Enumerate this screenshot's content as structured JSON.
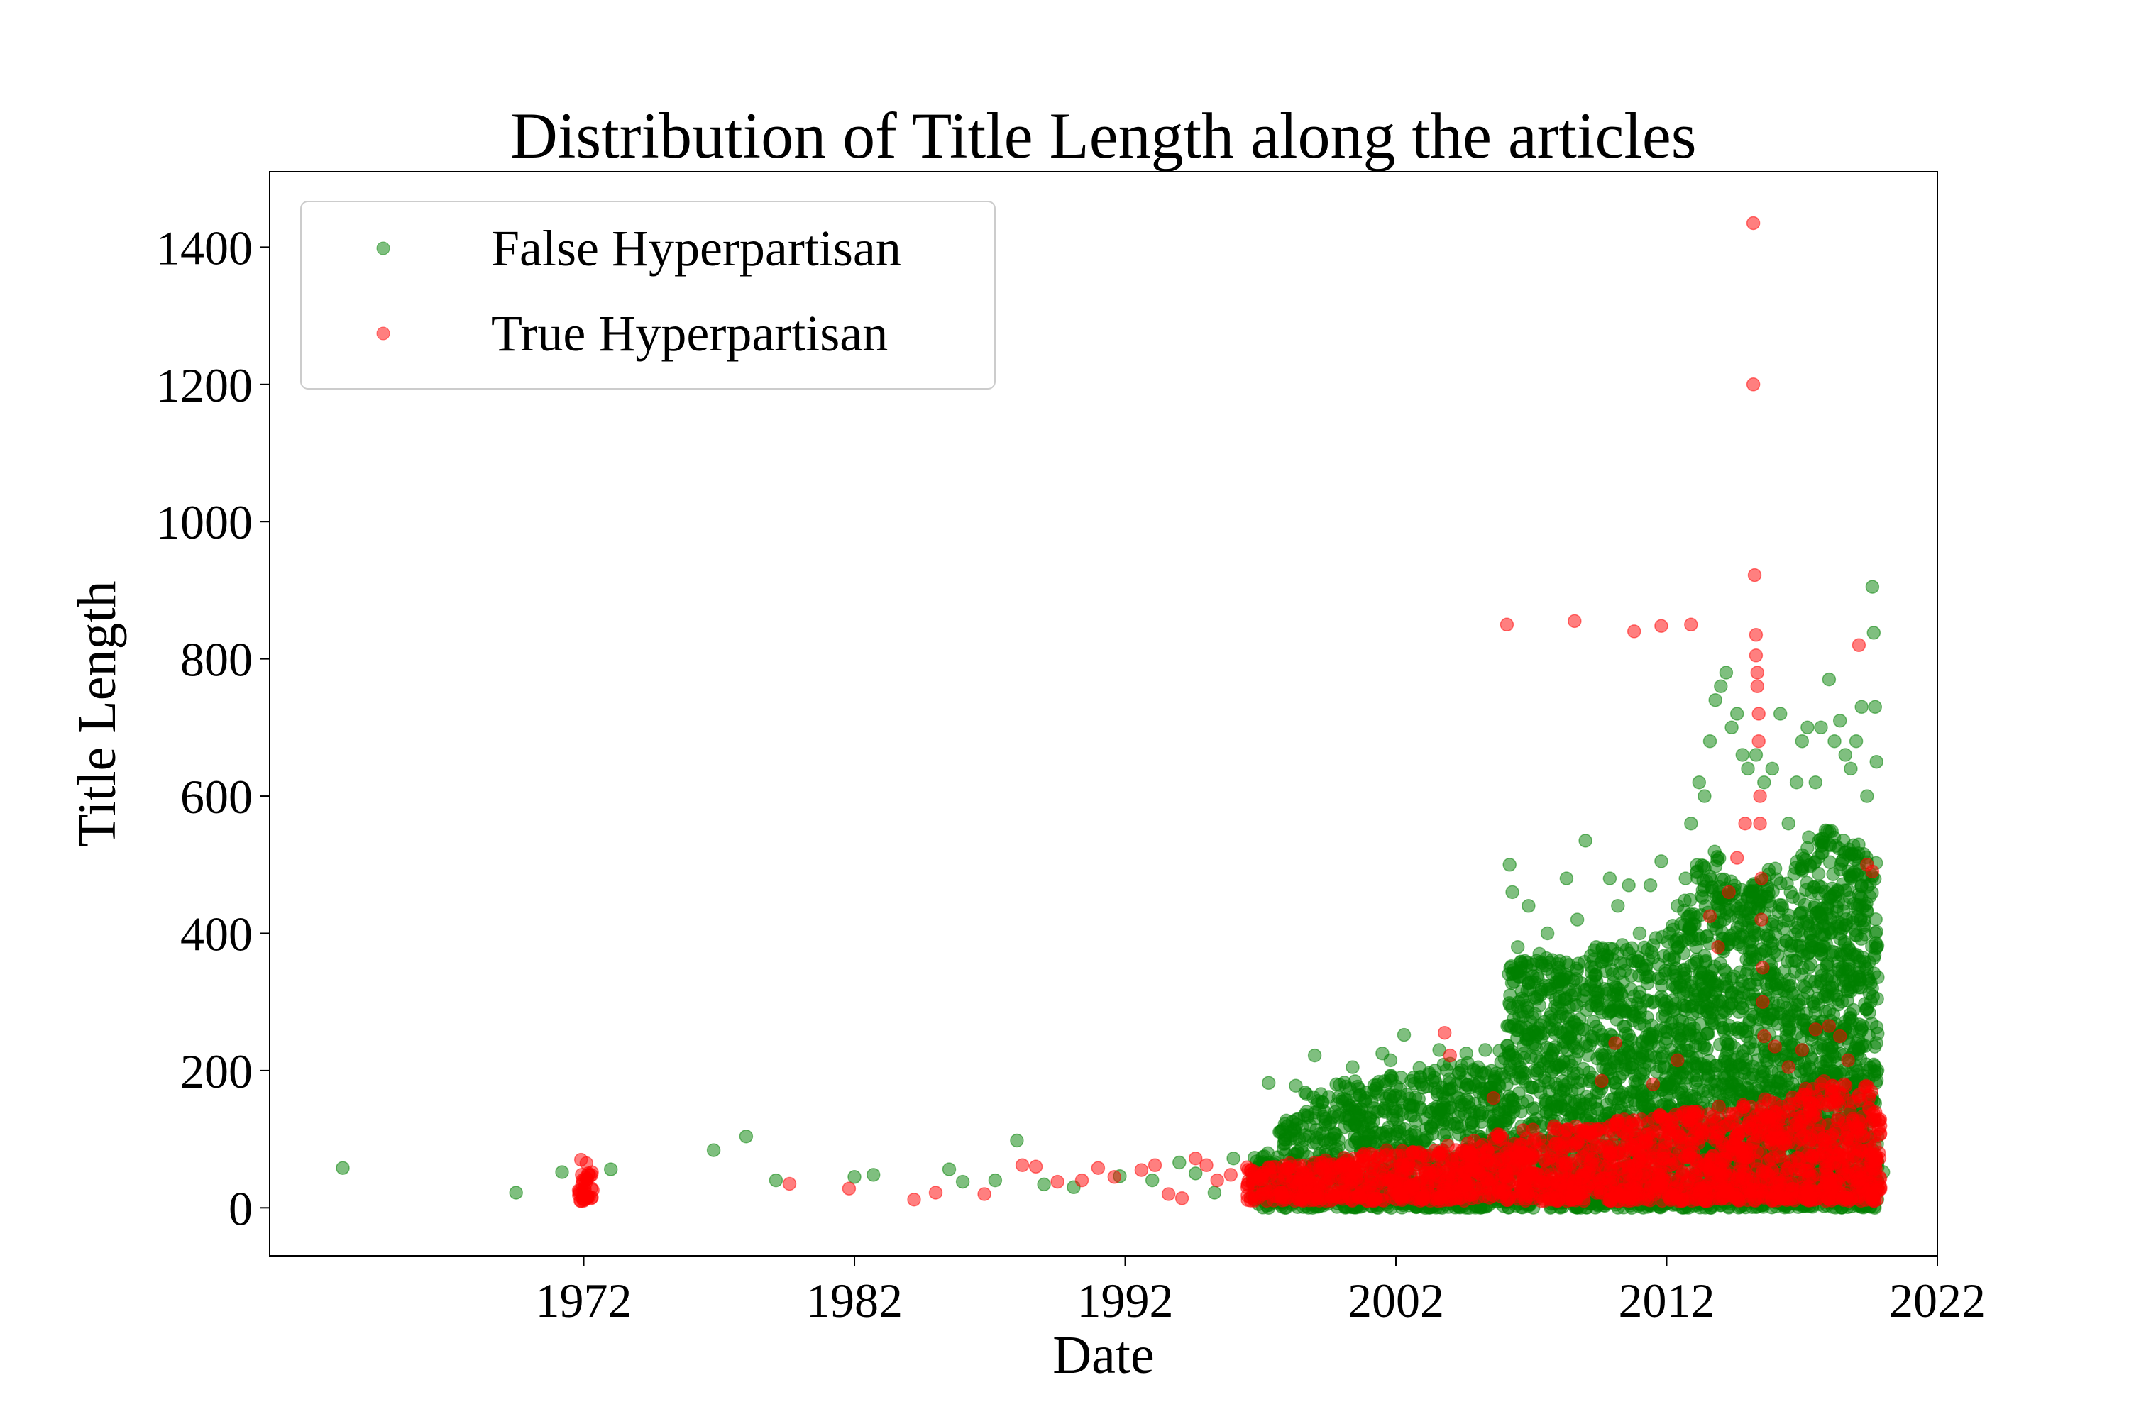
{
  "chart_data": {
    "type": "scatter",
    "title": "Distribution of Title Length along the articles",
    "xlabel": "Date",
    "ylabel": "Title Length",
    "x_unit": "year",
    "xlim": [
      1960.4,
      2022
    ],
    "ylim": [
      -70,
      1510
    ],
    "x_ticks": [
      1972,
      1982,
      1992,
      2002,
      2012,
      2022
    ],
    "x_tick_labels": [
      "1972",
      "1982",
      "1992",
      "2002",
      "2012",
      "2022"
    ],
    "y_ticks": [
      0,
      200,
      400,
      600,
      800,
      1000,
      1200,
      1400
    ],
    "y_tick_labels": [
      "0",
      "200",
      "400",
      "600",
      "800",
      "1000",
      "1200",
      "1400"
    ],
    "grid": false,
    "legend_position": "top-left",
    "marker_opacity": 0.5,
    "series": [
      {
        "name": "False Hyperpartisan",
        "color": "#008000",
        "points": [
          [
            1963.1,
            58
          ],
          [
            1969.5,
            22
          ],
          [
            1971.2,
            52
          ],
          [
            1973.0,
            56
          ],
          [
            1976.8,
            84
          ],
          [
            1978.0,
            104
          ],
          [
            1979.1,
            40
          ],
          [
            1982.0,
            45
          ],
          [
            1982.7,
            48
          ],
          [
            1985.5,
            56
          ],
          [
            1986.0,
            38
          ],
          [
            1987.2,
            40
          ],
          [
            1988.0,
            98
          ],
          [
            1989.0,
            34
          ],
          [
            1990.1,
            30
          ],
          [
            1991.8,
            46
          ],
          [
            1993.0,
            40
          ],
          [
            1994.0,
            66
          ],
          [
            1994.6,
            50
          ],
          [
            1995.3,
            22
          ],
          [
            1996.0,
            72
          ],
          [
            1996.8,
            50
          ],
          [
            1997.3,
            182
          ],
          [
            1997.6,
            60
          ],
          [
            1998.3,
            178
          ],
          [
            1998.7,
            140
          ],
          [
            1999.0,
            222
          ],
          [
            1999.8,
            180
          ],
          [
            2000.4,
            205
          ],
          [
            2000.9,
            160
          ],
          [
            2001.5,
            225
          ],
          [
            2001.8,
            215
          ],
          [
            2002.3,
            252
          ],
          [
            2002.9,
            190
          ],
          [
            2003.6,
            230
          ],
          [
            2004.0,
            210
          ],
          [
            2004.6,
            225
          ],
          [
            2005.3,
            230
          ],
          [
            2005.8,
            180
          ],
          [
            2006.2,
            500
          ],
          [
            2006.3,
            460
          ],
          [
            2006.5,
            380
          ],
          [
            2006.9,
            440
          ],
          [
            2007.2,
            360
          ],
          [
            2007.6,
            400
          ],
          [
            2008.0,
            350
          ],
          [
            2008.3,
            480
          ],
          [
            2008.7,
            420
          ],
          [
            2009.0,
            535
          ],
          [
            2009.4,
            380
          ],
          [
            2009.9,
            480
          ],
          [
            2010.2,
            440
          ],
          [
            2010.6,
            470
          ],
          [
            2011.0,
            400
          ],
          [
            2011.4,
            470
          ],
          [
            2011.8,
            505
          ],
          [
            2012.1,
            400
          ],
          [
            2012.4,
            440
          ],
          [
            2012.7,
            480
          ],
          [
            2012.9,
            560
          ],
          [
            2013.2,
            620
          ],
          [
            2013.4,
            600
          ],
          [
            2013.6,
            680
          ],
          [
            2013.8,
            740
          ],
          [
            2014.0,
            760
          ],
          [
            2014.2,
            780
          ],
          [
            2014.4,
            700
          ],
          [
            2014.6,
            720
          ],
          [
            2014.8,
            660
          ],
          [
            2015.0,
            640
          ],
          [
            2015.3,
            660
          ],
          [
            2015.6,
            620
          ],
          [
            2015.9,
            640
          ],
          [
            2016.2,
            720
          ],
          [
            2016.5,
            560
          ],
          [
            2016.8,
            620
          ],
          [
            2017.0,
            680
          ],
          [
            2017.2,
            700
          ],
          [
            2017.5,
            620
          ],
          [
            2017.7,
            700
          ],
          [
            2018.0,
            770
          ],
          [
            2018.2,
            680
          ],
          [
            2018.4,
            710
          ],
          [
            2018.6,
            660
          ],
          [
            2018.8,
            640
          ],
          [
            2019.0,
            680
          ],
          [
            2019.2,
            730
          ],
          [
            2019.4,
            600
          ],
          [
            2019.6,
            905
          ],
          [
            2019.65,
            838
          ],
          [
            2019.7,
            730
          ],
          [
            2019.75,
            650
          ],
          [
            2020.0,
            52
          ]
        ],
        "bands": [
          [
            1996.7,
            1997.6,
            0,
            80
          ],
          [
            1997.6,
            1998.6,
            0,
            130
          ],
          [
            1998.6,
            1999.6,
            0,
            170
          ],
          [
            1999.6,
            2000.6,
            0,
            185
          ],
          [
            2000.6,
            2001.6,
            0,
            195
          ],
          [
            2001.6,
            2002.6,
            0,
            200
          ],
          [
            2002.6,
            2003.6,
            0,
            205
          ],
          [
            2003.6,
            2004.6,
            0,
            210
          ],
          [
            2004.6,
            2005.6,
            0,
            215
          ],
          [
            2005.6,
            2006.1,
            0,
            230
          ],
          [
            2006.1,
            2007.1,
            0,
            360
          ],
          [
            2007.1,
            2008.1,
            0,
            375
          ],
          [
            2008.1,
            2009.1,
            0,
            360
          ],
          [
            2009.1,
            2010.1,
            0,
            380
          ],
          [
            2010.1,
            2011.1,
            0,
            385
          ],
          [
            2011.1,
            2012.1,
            0,
            395
          ],
          [
            2012.1,
            2012.6,
            0,
            420
          ],
          [
            2012.6,
            2013.1,
            0,
            450
          ],
          [
            2013.1,
            2013.6,
            0,
            500
          ],
          [
            2013.6,
            2014.1,
            0,
            520
          ],
          [
            2014.1,
            2014.6,
            0,
            480
          ],
          [
            2014.6,
            2015.1,
            0,
            470
          ],
          [
            2015.1,
            2015.6,
            0,
            480
          ],
          [
            2015.6,
            2016.1,
            0,
            500
          ],
          [
            2016.1,
            2016.6,
            0,
            480
          ],
          [
            2016.6,
            2017.1,
            0,
            520
          ],
          [
            2017.1,
            2017.6,
            0,
            540
          ],
          [
            2017.6,
            2018.1,
            0,
            560
          ],
          [
            2018.1,
            2018.6,
            0,
            540
          ],
          [
            2018.6,
            2019.1,
            0,
            530
          ],
          [
            2019.1,
            2019.8,
            0,
            520
          ]
        ]
      },
      {
        "name": "True Hyperpartisan",
        "color": "#ff0000",
        "points": [
          [
            1971.9,
            10
          ],
          [
            1971.9,
            70
          ],
          [
            1972.1,
            65
          ],
          [
            1972.3,
            15
          ],
          [
            1979.6,
            35
          ],
          [
            1981.8,
            28
          ],
          [
            1984.2,
            12
          ],
          [
            1985.0,
            22
          ],
          [
            1986.8,
            20
          ],
          [
            1988.2,
            62
          ],
          [
            1988.7,
            60
          ],
          [
            1989.5,
            38
          ],
          [
            1990.4,
            40
          ],
          [
            1991.0,
            58
          ],
          [
            1991.6,
            45
          ],
          [
            1992.6,
            55
          ],
          [
            1993.1,
            62
          ],
          [
            1993.6,
            20
          ],
          [
            1994.1,
            14
          ],
          [
            1994.6,
            72
          ],
          [
            1995.0,
            62
          ],
          [
            1995.4,
            40
          ],
          [
            1995.9,
            48
          ],
          [
            2003.8,
            255
          ],
          [
            2004.0,
            222
          ],
          [
            2005.6,
            160
          ],
          [
            2006.1,
            850
          ],
          [
            2007.3,
            100
          ],
          [
            2008.6,
            855
          ],
          [
            2009.6,
            185
          ],
          [
            2010.1,
            240
          ],
          [
            2010.8,
            840
          ],
          [
            2011.5,
            180
          ],
          [
            2011.8,
            848
          ],
          [
            2012.4,
            215
          ],
          [
            2012.9,
            850
          ],
          [
            2013.6,
            425
          ],
          [
            2013.9,
            380
          ],
          [
            2014.3,
            460
          ],
          [
            2014.6,
            510
          ],
          [
            2014.9,
            560
          ],
          [
            2015.2,
            1435
          ],
          [
            2015.2,
            1200
          ],
          [
            2015.25,
            922
          ],
          [
            2015.3,
            835
          ],
          [
            2015.3,
            805
          ],
          [
            2015.35,
            780
          ],
          [
            2015.35,
            760
          ],
          [
            2015.4,
            720
          ],
          [
            2015.4,
            680
          ],
          [
            2015.45,
            600
          ],
          [
            2015.45,
            560
          ],
          [
            2015.5,
            480
          ],
          [
            2015.5,
            420
          ],
          [
            2015.55,
            350
          ],
          [
            2015.55,
            300
          ],
          [
            2015.6,
            250
          ],
          [
            2016.0,
            235
          ],
          [
            2016.5,
            205
          ],
          [
            2017.0,
            230
          ],
          [
            2017.5,
            260
          ],
          [
            2018.0,
            265
          ],
          [
            2018.4,
            250
          ],
          [
            2018.7,
            215
          ],
          [
            2019.1,
            820
          ],
          [
            2019.4,
            500
          ],
          [
            2019.6,
            490
          ],
          [
            2019.9,
            30
          ]
        ],
        "bands": [
          [
            1971.75,
            1972.35,
            10,
            55
          ],
          [
            1996.5,
            1997.6,
            10,
            60
          ],
          [
            1997.6,
            1998.6,
            10,
            65
          ],
          [
            1998.6,
            1999.6,
            10,
            70
          ],
          [
            1999.6,
            2000.6,
            10,
            75
          ],
          [
            2000.6,
            2001.6,
            10,
            80
          ],
          [
            2001.6,
            2002.6,
            10,
            85
          ],
          [
            2002.6,
            2003.6,
            10,
            90
          ],
          [
            2003.6,
            2004.6,
            10,
            95
          ],
          [
            2004.6,
            2005.6,
            10,
            100
          ],
          [
            2005.6,
            2006.6,
            10,
            110
          ],
          [
            2006.6,
            2007.6,
            10,
            115
          ],
          [
            2007.6,
            2008.6,
            10,
            120
          ],
          [
            2008.6,
            2009.6,
            10,
            125
          ],
          [
            2009.6,
            2010.6,
            10,
            130
          ],
          [
            2010.6,
            2011.6,
            10,
            135
          ],
          [
            2011.6,
            2012.6,
            10,
            140
          ],
          [
            2012.6,
            2013.6,
            10,
            145
          ],
          [
            2013.6,
            2014.6,
            10,
            150
          ],
          [
            2014.6,
            2015.6,
            10,
            155
          ],
          [
            2015.6,
            2016.6,
            10,
            165
          ],
          [
            2016.6,
            2017.6,
            10,
            175
          ],
          [
            2017.6,
            2018.6,
            10,
            185
          ],
          [
            2018.6,
            2019.6,
            10,
            180
          ],
          [
            2019.6,
            2019.9,
            10,
            140
          ]
        ]
      }
    ]
  }
}
